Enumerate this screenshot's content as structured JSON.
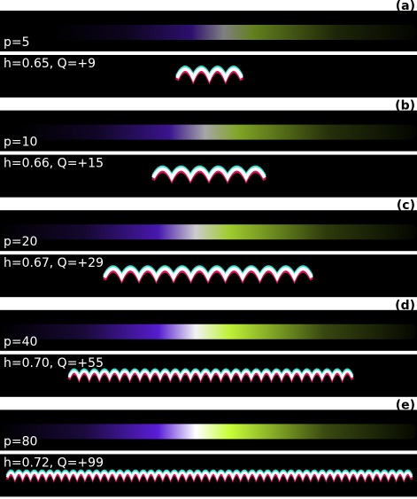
{
  "panels": [
    {
      "label": "(a)",
      "p": "p=5",
      "hq": "h=0.65, Q=+9"
    },
    {
      "label": "(b)",
      "p": "p=10",
      "hq": "h=0.66, Q=+15"
    },
    {
      "label": "(c)",
      "p": "p=20",
      "hq": "h=0.67, Q=+29"
    },
    {
      "label": "(d)",
      "p": "p=40",
      "hq": "h=0.70, Q=+55"
    },
    {
      "label": "(e)",
      "p": "p=80",
      "hq": "h=0.72, Q=+99"
    }
  ]
}
